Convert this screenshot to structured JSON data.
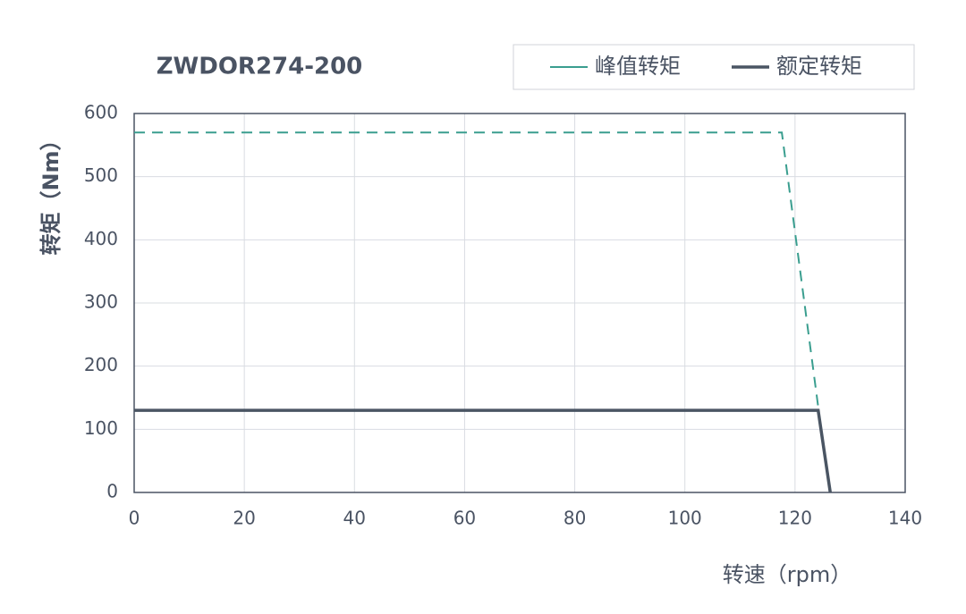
{
  "chart_data": {
    "type": "line",
    "title": "ZWDOR274-200",
    "x_label": "转速（rpm）",
    "y_label": "转矩（Nm）",
    "series": [
      {
        "name": "峰值转矩",
        "color": "#3a9e8f",
        "dashed": true,
        "x": [
          0,
          117.6,
          124.2
        ],
        "values": [
          570,
          570,
          136
        ]
      },
      {
        "name": "额定转矩",
        "color": "#4a5563",
        "dashed": false,
        "x": [
          0,
          124.2,
          126.4
        ],
        "values": [
          130,
          130,
          0
        ]
      }
    ],
    "xlim": [
      0,
      140
    ],
    "xticks": [
      0,
      20,
      40,
      60,
      80,
      100,
      120,
      140
    ],
    "ylim": [
      0,
      600
    ],
    "yticks": [
      0,
      100,
      200,
      300,
      400,
      500,
      600
    ],
    "grid": true,
    "legend": "top right"
  }
}
